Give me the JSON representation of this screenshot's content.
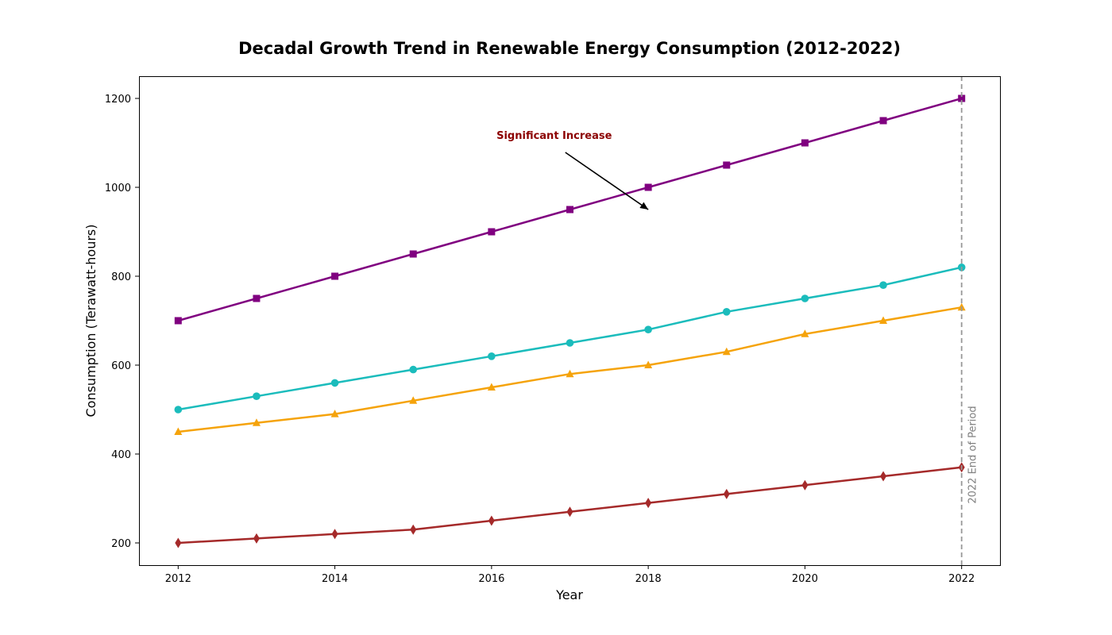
{
  "chart_data": {
    "type": "line",
    "title": "Decadal Growth Trend in Renewable Energy Consumption (2012-2022)",
    "xlabel": "Year",
    "ylabel": "Consumption (Terawatt-hours)",
    "x": [
      2012,
      2013,
      2014,
      2015,
      2016,
      2017,
      2018,
      2019,
      2020,
      2021,
      2022
    ],
    "xlim": [
      2011.5,
      2022.5
    ],
    "ylim": [
      150,
      1250
    ],
    "xticks": [
      2012,
      2014,
      2016,
      2018,
      2020,
      2022
    ],
    "yticks": [
      200,
      400,
      600,
      800,
      1000,
      1200
    ],
    "grid": false,
    "series": [
      {
        "color": "#800080",
        "marker": "square",
        "values": [
          700,
          750,
          800,
          850,
          900,
          950,
          1000,
          1050,
          1100,
          1150,
          1200
        ]
      },
      {
        "color": "#1bbcbc",
        "marker": "circle",
        "values": [
          500,
          530,
          560,
          590,
          620,
          650,
          680,
          720,
          750,
          780,
          820
        ]
      },
      {
        "color": "#f5a30b",
        "marker": "triangle",
        "values": [
          450,
          470,
          490,
          520,
          550,
          580,
          600,
          630,
          670,
          700,
          730
        ]
      },
      {
        "color": "#a52a2a",
        "marker": "diamond",
        "values": [
          200,
          210,
          220,
          230,
          250,
          270,
          290,
          310,
          330,
          350,
          370
        ]
      }
    ],
    "annotation": {
      "text": "Significant Increase",
      "color": "#8b0000",
      "text_at": [
        2016.8,
        1100
      ],
      "arrow_to": [
        2018,
        950
      ]
    },
    "vline": {
      "x": 2022,
      "label": "2022 End of Period",
      "color": "#999999",
      "style": "dashed"
    }
  }
}
